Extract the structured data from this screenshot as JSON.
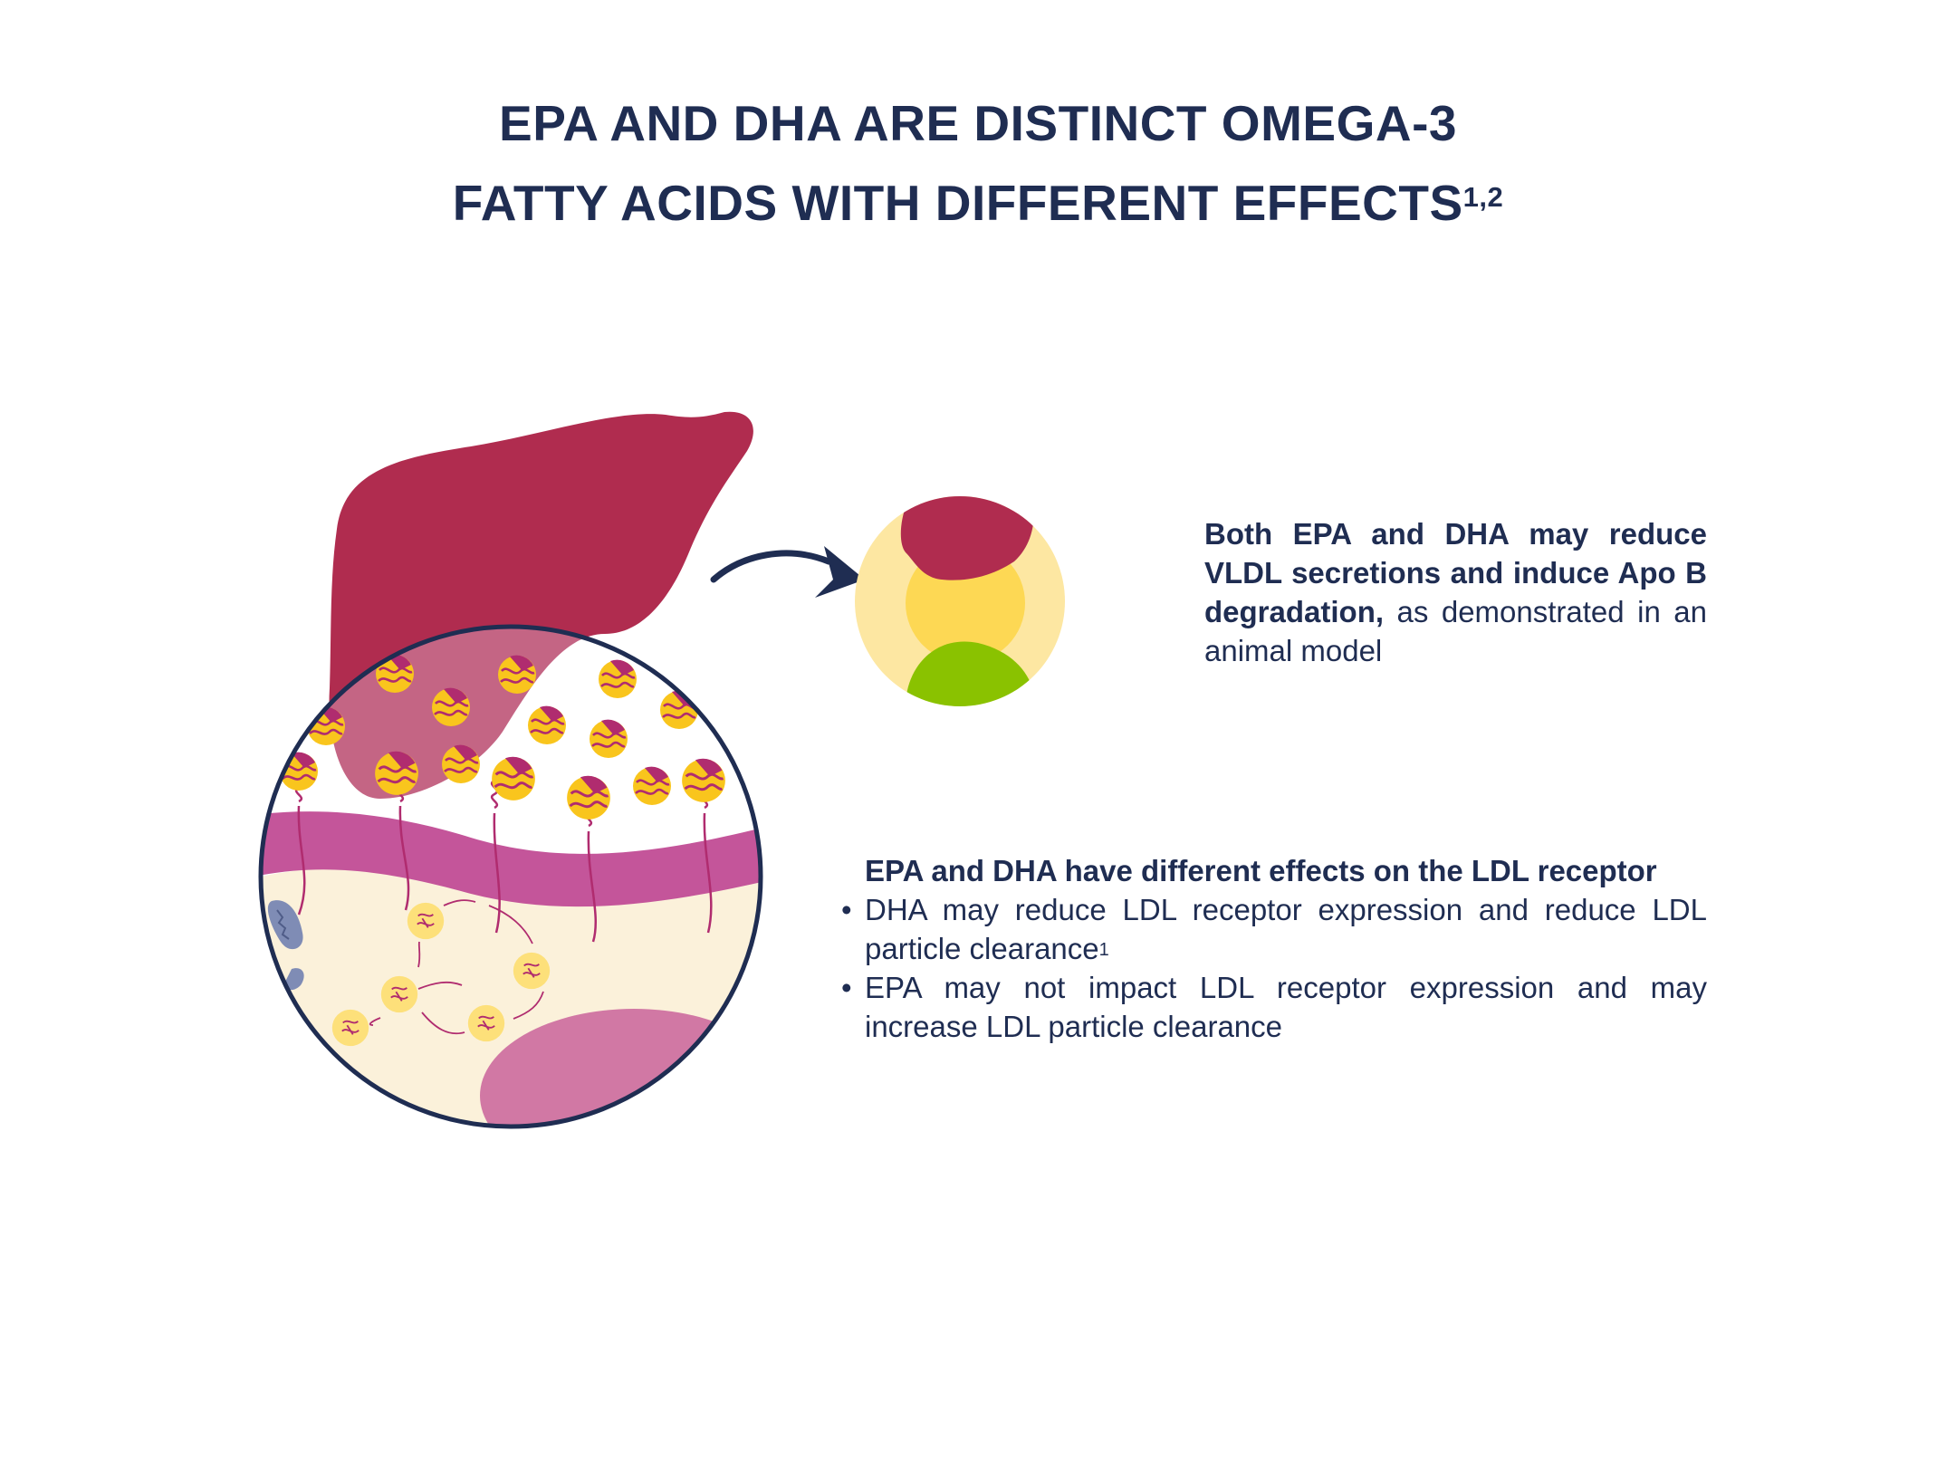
{
  "title": {
    "line1": "EPA AND DHA ARE DISTINCT OMEGA-3",
    "line2": "FATTY ACIDS WITH DIFFERENT EFFECTS",
    "sup": "1,2"
  },
  "panel_vldl": {
    "bold": "Both EPA and DHA may reduce VLDL secretions and induce Apo B degradation,",
    "normal": " as demonstrated in an animal model"
  },
  "panel_ldl": {
    "heading": "EPA and DHA have different effects on the LDL receptor",
    "bullets": [
      {
        "text": "DHA may reduce LDL receptor expression and reduce LDL particle clearance",
        "sup": "1"
      },
      {
        "text": "EPA may not impact LDL receptor expression and may increase LDL particle clearance",
        "sup": ""
      }
    ]
  },
  "colors": {
    "navy": "#1f2d52",
    "liver": "#b02c4f",
    "membrane": "#c4559a",
    "particle_yellow": "#f9c51d",
    "cytoplasm": "#fbf1da",
    "lipid_core": "#fdd854",
    "lipid_shell": "#fde7a2",
    "apo_blue": "#7f8cb5",
    "apo_green": "#8ac200"
  }
}
